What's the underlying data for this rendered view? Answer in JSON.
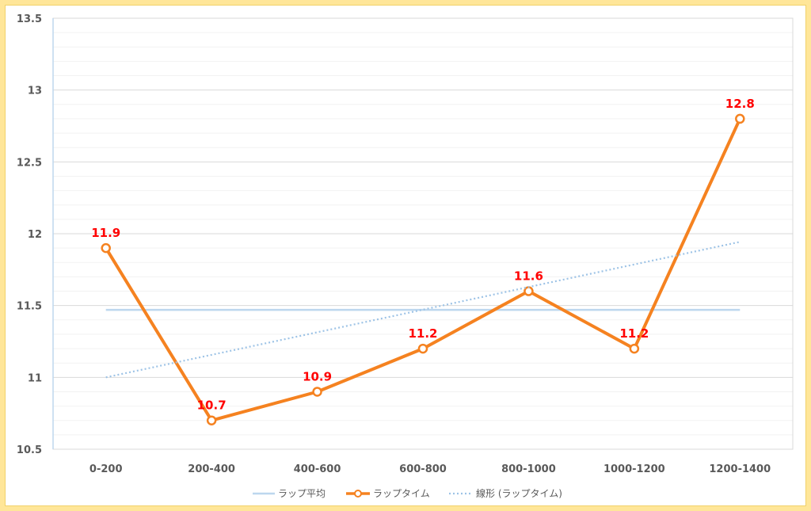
{
  "chart_data": {
    "type": "line",
    "categories": [
      "0-200",
      "200-400",
      "400-600",
      "600-800",
      "800-1000",
      "1000-1200",
      "1200-1400"
    ],
    "ylim": [
      10.5,
      13.5
    ],
    "y_ticks": [
      10.5,
      11,
      11.5,
      12,
      12.5,
      13,
      13.5
    ],
    "y_tick_labels": [
      "10.5",
      "11",
      "11.5",
      "12",
      "12.5",
      "13",
      "13.5"
    ],
    "grid": true,
    "legend_position": "bottom",
    "series": [
      {
        "name": "ラップ平均",
        "style": "line",
        "color": "#bdd7ee",
        "values": [
          11.47,
          11.47,
          11.47,
          11.47,
          11.47,
          11.47,
          11.47
        ]
      },
      {
        "name": "ラップタイム",
        "style": "line-markers",
        "color": "#f58220",
        "values": [
          11.9,
          10.7,
          10.9,
          11.2,
          11.6,
          11.2,
          12.8
        ],
        "data_labels": [
          "11.9",
          "10.7",
          "10.9",
          "11.2",
          "11.6",
          "11.2",
          "12.8"
        ],
        "data_label_color": "#ff0000"
      },
      {
        "name": "線形 (ラップタイム)",
        "style": "dotted-trendline",
        "color": "#9dc3e6",
        "values": [
          11.0,
          11.157,
          11.314,
          11.471,
          11.629,
          11.786,
          11.943
        ]
      }
    ]
  }
}
